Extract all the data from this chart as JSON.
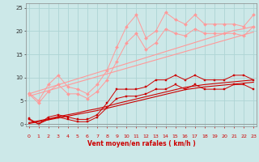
{
  "x": [
    0,
    1,
    2,
    3,
    4,
    5,
    6,
    7,
    8,
    9,
    10,
    11,
    12,
    13,
    14,
    15,
    16,
    17,
    18,
    19,
    20,
    21,
    22,
    23
  ],
  "line1_pink": [
    6.7,
    5.0,
    8.5,
    10.5,
    8.0,
    7.5,
    6.5,
    8.5,
    11.5,
    16.5,
    21.0,
    23.5,
    18.5,
    20.0,
    24.0,
    22.5,
    21.5,
    23.5,
    21.5,
    21.5,
    21.5,
    21.5,
    21.0,
    23.5
  ],
  "line2_pink": [
    6.5,
    4.5,
    7.0,
    8.5,
    6.5,
    6.5,
    5.5,
    7.0,
    9.5,
    13.5,
    17.5,
    19.5,
    16.0,
    17.5,
    20.5,
    19.5,
    19.0,
    20.5,
    19.5,
    19.5,
    19.5,
    19.5,
    19.0,
    21.0
  ],
  "line3_pink_linear1": [
    6.5,
    7.15,
    7.8,
    8.45,
    9.1,
    9.75,
    10.4,
    11.05,
    11.7,
    12.35,
    13.0,
    13.65,
    14.3,
    14.95,
    15.6,
    16.25,
    16.9,
    17.55,
    18.2,
    18.85,
    19.5,
    20.15,
    20.5,
    21.0
  ],
  "line4_pink_linear2": [
    6.0,
    6.6,
    7.2,
    7.8,
    8.4,
    9.0,
    9.6,
    10.2,
    10.8,
    11.4,
    12.0,
    12.6,
    13.2,
    13.8,
    14.4,
    15.0,
    15.6,
    16.2,
    16.8,
    17.4,
    18.0,
    18.6,
    19.2,
    19.8
  ],
  "line5_red": [
    1.2,
    0.0,
    1.5,
    2.0,
    1.5,
    1.0,
    1.0,
    2.0,
    4.5,
    7.5,
    7.5,
    7.5,
    8.0,
    9.5,
    9.5,
    10.5,
    9.5,
    10.5,
    9.5,
    9.5,
    9.5,
    10.5,
    10.5,
    9.5
  ],
  "line6_red": [
    1.0,
    0.0,
    1.0,
    1.5,
    1.0,
    0.5,
    0.5,
    1.5,
    3.5,
    5.5,
    6.0,
    6.0,
    6.5,
    7.5,
    7.5,
    8.5,
    7.5,
    8.5,
    7.5,
    7.5,
    7.5,
    8.5,
    8.5,
    7.5
  ],
  "line7_red_linear1": [
    0.3,
    0.7,
    1.1,
    1.6,
    2.0,
    2.4,
    2.9,
    3.3,
    3.8,
    4.4,
    4.9,
    5.4,
    5.9,
    6.4,
    6.9,
    7.4,
    7.9,
    8.2,
    8.5,
    8.7,
    8.9,
    9.1,
    9.3,
    9.5
  ],
  "line8_red_linear2": [
    0.1,
    0.5,
    0.9,
    1.3,
    1.7,
    2.1,
    2.5,
    2.9,
    3.4,
    3.9,
    4.4,
    4.9,
    5.4,
    5.9,
    6.4,
    6.9,
    7.4,
    7.7,
    8.0,
    8.2,
    8.4,
    8.6,
    8.8,
    9.0
  ],
  "wind_dirs": [
    "↓",
    "→",
    "↷",
    "→",
    "↷",
    "→",
    "↷",
    "↷",
    "↓",
    "↳",
    "↓",
    "↓",
    "↓",
    "↳",
    "↖",
    "↷",
    "↓",
    "↖",
    "↓",
    "↳",
    "←",
    "↓",
    "↓",
    "↓"
  ],
  "bg_color": "#cce8e8",
  "grid_color": "#aed4d4",
  "pink_color": "#ff9999",
  "red_color": "#cc0000",
  "xlabel": "Vent moyen/en rafales ( km/h )",
  "ylim": [
    -0.5,
    26
  ],
  "xlim": [
    -0.3,
    23.3
  ],
  "yticks": [
    0,
    5,
    10,
    15,
    20,
    25
  ],
  "xticks": [
    0,
    1,
    2,
    3,
    4,
    5,
    6,
    7,
    8,
    9,
    10,
    11,
    12,
    13,
    14,
    15,
    16,
    17,
    18,
    19,
    20,
    21,
    22,
    23
  ]
}
